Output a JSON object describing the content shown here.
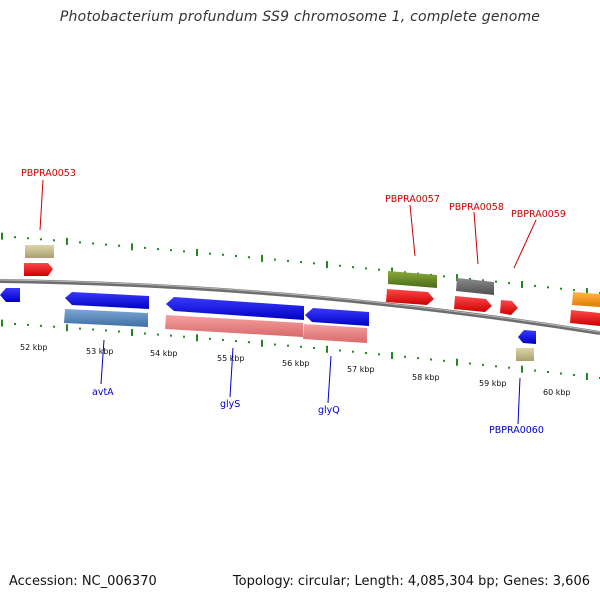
{
  "title": "Photobacterium profundum SS9 chromosome 1, complete genome",
  "footer": {
    "accession": "Accession: NC_006370",
    "summary": "Topology: circular; Length: 4,085,304 bp; Genes: 3,606"
  },
  "ruler_ticks": [
    "52 kbp",
    "53 kbp",
    "54 kbp",
    "55 kbp",
    "56 kbp",
    "57 kbp",
    "58 kbp",
    "59 kbp",
    "60 kbp"
  ],
  "gene_labels": {
    "PBPRA0053": "PBPRA0053",
    "PBPRA0057": "PBPRA0057",
    "PBPRA0058": "PBPRA0058",
    "PBPRA0059": "PBPRA0059",
    "PBPRA0060": "PBPRA0060",
    "avtA": "avtA",
    "glyS": "glyS",
    "glyQ": "glyQ"
  },
  "colors": {
    "label_red": "#cc0000",
    "label_blue": "#0000cc",
    "cds_red": "#ee1111",
    "cds_blue": "#1111ee",
    "gene_steelblue": "#5b8bc0",
    "gene_pink": "#ee8888",
    "gene_tan": "#c8c088",
    "gene_green": "#6a8a2a",
    "gene_gray": "#707070",
    "gene_orange": "#ff9a1a",
    "tick_green": "#228822",
    "backbone": "#808080"
  }
}
